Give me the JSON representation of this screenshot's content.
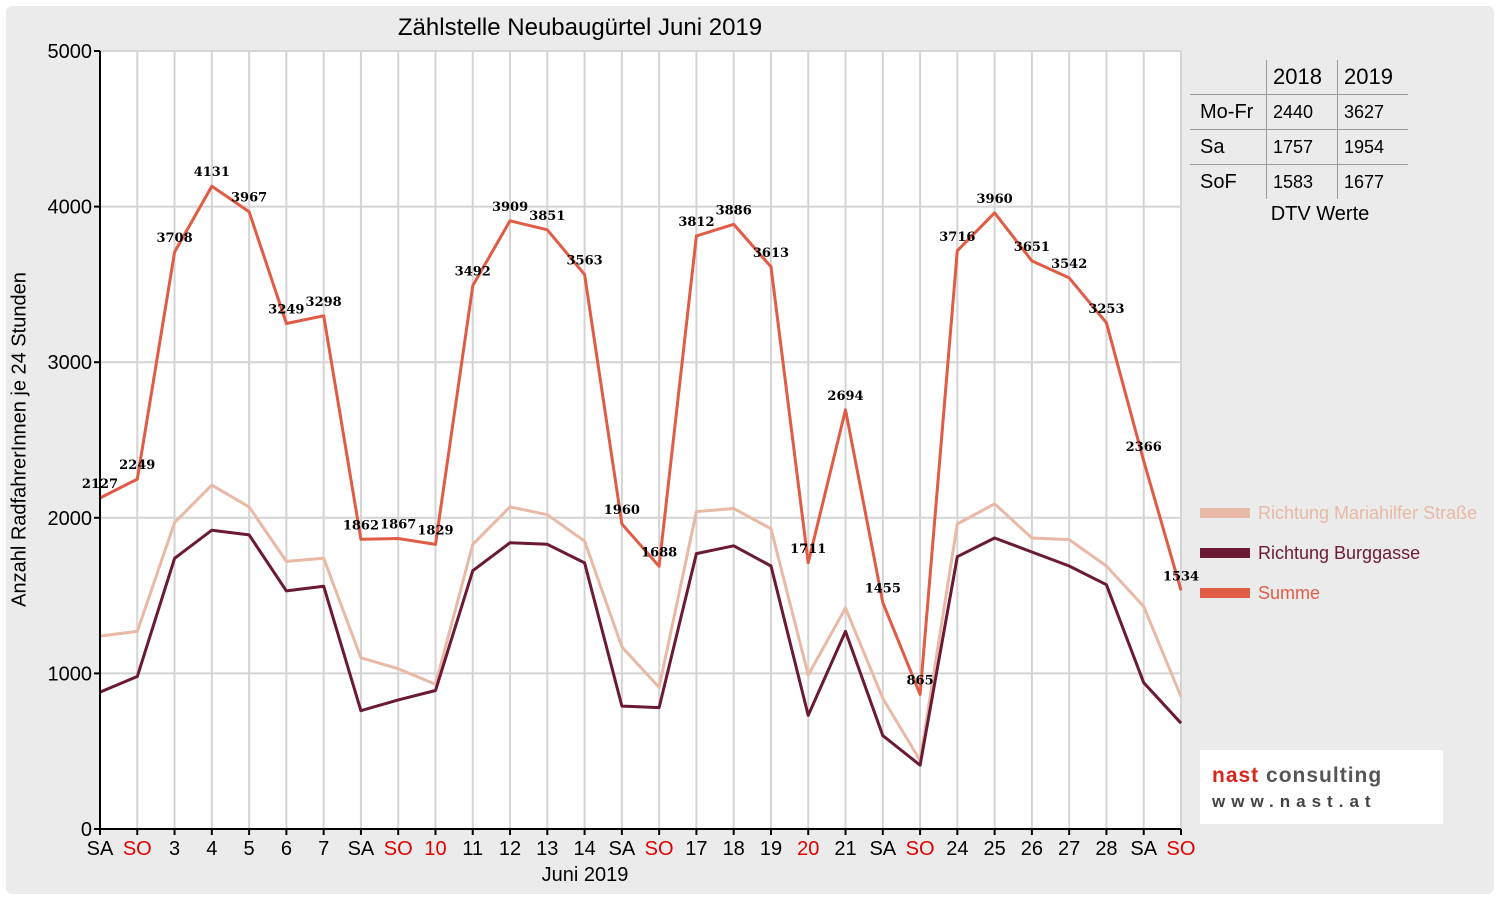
{
  "chart_data": {
    "type": "line",
    "title": "Zählstelle Neubaugürtel Juni 2019",
    "xlabel": "Juni 2019",
    "ylabel": "Anzahl RadfahrerInnen je 24 Stunden",
    "ylim": [
      0,
      5000
    ],
    "yticks": [
      "0",
      "1000",
      "2000",
      "3000",
      "4000",
      "5000"
    ],
    "grid": true,
    "legend_position": "right",
    "categories": [
      "SA",
      "SO",
      "3",
      "4",
      "5",
      "6",
      "7",
      "SA",
      "SO",
      "10",
      "11",
      "12",
      "13",
      "14",
      "SA",
      "SO",
      "17",
      "18",
      "19",
      "20",
      "21",
      "SA",
      "SO",
      "24",
      "25",
      "26",
      "27",
      "28",
      "SA",
      "SO"
    ],
    "red_categories": [
      1,
      8,
      9,
      15,
      19,
      22,
      29
    ],
    "series": [
      {
        "name": "Richtung Mariahilfer Straße",
        "color": "#e8b9a6",
        "values": [
          1240,
          1270,
          1970,
          2210,
          2070,
          1720,
          1740,
          1100,
          1030,
          930,
          1830,
          2070,
          2020,
          1850,
          1170,
          910,
          2040,
          2060,
          1930,
          990,
          1420,
          840,
          440,
          1960,
          2090,
          1870,
          1860,
          1690,
          1430,
          850
        ]
      },
      {
        "name": "Richtung Burggasse",
        "color": "#6b1a33",
        "values": [
          880,
          980,
          1740,
          1920,
          1890,
          1530,
          1560,
          760,
          830,
          890,
          1660,
          1840,
          1830,
          1710,
          790,
          780,
          1770,
          1820,
          1690,
          730,
          1270,
          600,
          410,
          1750,
          1870,
          1780,
          1690,
          1570,
          940,
          680
        ]
      },
      {
        "name": "Summe",
        "color": "#e05c45",
        "values": [
          2127,
          2249,
          3708,
          4131,
          3967,
          3249,
          3298,
          1862,
          1867,
          1829,
          3492,
          3909,
          3851,
          3563,
          1960,
          1688,
          3812,
          3886,
          3613,
          1711,
          2694,
          1455,
          865,
          3716,
          3960,
          3651,
          3542,
          3253,
          2366,
          1534
        ],
        "labels": [
          "2127",
          "2249",
          "3708",
          "4131",
          "3967",
          "3249",
          "3298",
          "1862",
          "1867",
          "1829",
          "3492",
          "3909",
          "3851",
          "3563",
          "1960",
          "1688",
          "3812",
          "3886",
          "3613",
          "1711",
          "2694",
          "1455",
          "865",
          "3716",
          "3960",
          "3651",
          "3542",
          "3253",
          "2366",
          "1534"
        ]
      }
    ]
  },
  "dtv_table": {
    "years": [
      "2018",
      "2019"
    ],
    "rows": [
      {
        "label": "Mo-Fr",
        "v2018": "2440",
        "v2019": "3627"
      },
      {
        "label": "Sa",
        "v2018": "1757",
        "v2019": "1954"
      },
      {
        "label": "SoF",
        "v2018": "1583",
        "v2019": "1677"
      }
    ],
    "caption": "DTV Werte"
  },
  "logo": {
    "line1_a": "nast",
    "line1_b": " consulting",
    "line2": "www.nast.at"
  }
}
